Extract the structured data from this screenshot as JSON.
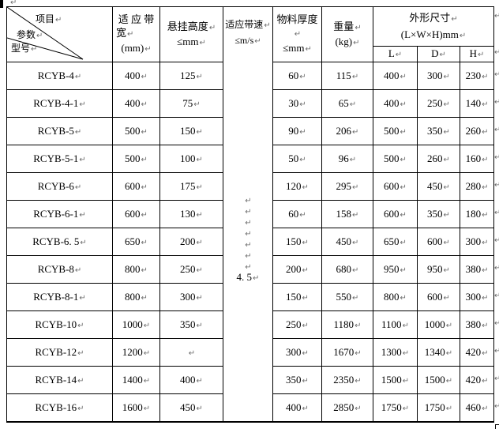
{
  "marks": {
    "return": "↵"
  },
  "colors": {
    "background": "#ffffff",
    "border": "#000000",
    "text": "#000000",
    "mark": "#6e6e6e"
  },
  "header": {
    "diagonal": {
      "top": "项目",
      "middle": "参数",
      "bottom": "型号"
    },
    "bandwidth": {
      "l1": "适 应 带",
      "l2": "宽",
      "l3": "(mm)"
    },
    "hang_height": {
      "l1": "悬挂高度",
      "l2": "≤mm"
    },
    "belt_speed": {
      "l1": "适应带速",
      "l2": "≤m/s"
    },
    "material_thickness": {
      "l1": "物料厚度",
      "l2": "≤mm"
    },
    "weight": {
      "l1": "重量",
      "l2": "(kg)"
    },
    "dimensions": {
      "l1": "外形尺寸",
      "l2": "(L×W×H)mm",
      "sub": [
        "L",
        "D",
        "H"
      ]
    }
  },
  "speed_cell": {
    "blank_count": 7,
    "value": "4. 5"
  },
  "rows": [
    {
      "model": "RCYB-4",
      "bandwidth": "400",
      "hang_height": "125",
      "material_thickness": "60",
      "weight": "115",
      "dim_l": "400",
      "dim_d": "300",
      "dim_h": "230"
    },
    {
      "model": "RCYB-4-1",
      "bandwidth": "400",
      "hang_height": "75",
      "material_thickness": "30",
      "weight": "65",
      "dim_l": "400",
      "dim_d": "250",
      "dim_h": "140"
    },
    {
      "model": "RCYB-5",
      "bandwidth": "500",
      "hang_height": "150",
      "material_thickness": "90",
      "weight": "206",
      "dim_l": "500",
      "dim_d": "350",
      "dim_h": "260"
    },
    {
      "model": "RCYB-5-1",
      "bandwidth": "500",
      "hang_height": "100",
      "material_thickness": "50",
      "weight": "96",
      "dim_l": "500",
      "dim_d": "260",
      "dim_h": "160"
    },
    {
      "model": "RCYB-6",
      "bandwidth": "600",
      "hang_height": "175",
      "material_thickness": "120",
      "weight": "295",
      "dim_l": "600",
      "dim_d": "450",
      "dim_h": "280"
    },
    {
      "model": "RCYB-6-1",
      "bandwidth": "600",
      "hang_height": "130",
      "material_thickness": "60",
      "weight": "158",
      "dim_l": "600",
      "dim_d": "350",
      "dim_h": "180"
    },
    {
      "model": "RCYB-6. 5",
      "bandwidth": "650",
      "hang_height": "200",
      "material_thickness": "150",
      "weight": "450",
      "dim_l": "650",
      "dim_d": "600",
      "dim_h": "300"
    },
    {
      "model": "RCYB-8",
      "bandwidth": "800",
      "hang_height": "250",
      "material_thickness": "200",
      "weight": "680",
      "dim_l": "950",
      "dim_d": "950",
      "dim_h": "380"
    },
    {
      "model": "RCYB-8-1",
      "bandwidth": "800",
      "hang_height": "300",
      "material_thickness": "150",
      "weight": "550",
      "dim_l": "800",
      "dim_d": "600",
      "dim_h": "300"
    },
    {
      "model": "RCYB-10",
      "bandwidth": "1000",
      "hang_height": "350",
      "material_thickness": "250",
      "weight": "1180",
      "dim_l": "1100",
      "dim_d": "1000",
      "dim_h": "380"
    },
    {
      "model": "RCYB-12",
      "bandwidth": "1200",
      "hang_height": "",
      "material_thickness": "300",
      "weight": "1670",
      "dim_l": "1300",
      "dim_d": "1340",
      "dim_h": "420"
    },
    {
      "model": "RCYB-14",
      "bandwidth": "1400",
      "hang_height": "400",
      "material_thickness": "350",
      "weight": "2350",
      "dim_l": "1500",
      "dim_d": "1500",
      "dim_h": "420"
    },
    {
      "model": "RCYB-16",
      "bandwidth": "1600",
      "hang_height": "450",
      "material_thickness": "400",
      "weight": "2850",
      "dim_l": "1750",
      "dim_d": "1750",
      "dim_h": "460"
    }
  ]
}
